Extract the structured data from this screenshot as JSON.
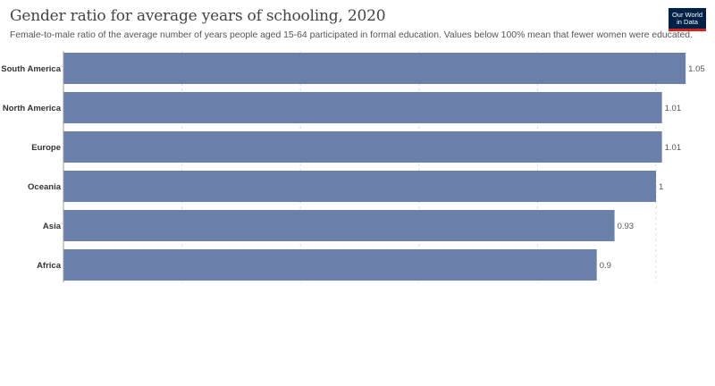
{
  "header": {
    "title": "Gender ratio for average years of schooling, 2020",
    "subtitle": "Female-to-male ratio of the average number of years people aged 15-64 participated in formal education. Values below 100% mean that fewer women were educated.",
    "logo_line1": "Our World",
    "logo_line2": "in Data"
  },
  "colors": {
    "bar": "#6a7faa",
    "grid": "#dddddd",
    "label": "#333333",
    "value": "#555555",
    "logo_bg": "#002147",
    "logo_accent": "#ce261e"
  },
  "chart_data": {
    "type": "bar",
    "orientation": "horizontal",
    "categories": [
      "South America",
      "North America",
      "Europe",
      "Oceania",
      "Asia",
      "Africa"
    ],
    "values": [
      1.05,
      1.01,
      1.01,
      1,
      0.93,
      0.9
    ],
    "value_labels": [
      "1.05",
      "1.01",
      "1.01",
      "1",
      "0.93",
      "0.9"
    ],
    "title": "Gender ratio for average years of schooling, 2020",
    "xlim": [
      0,
      1
    ],
    "grid": true
  }
}
